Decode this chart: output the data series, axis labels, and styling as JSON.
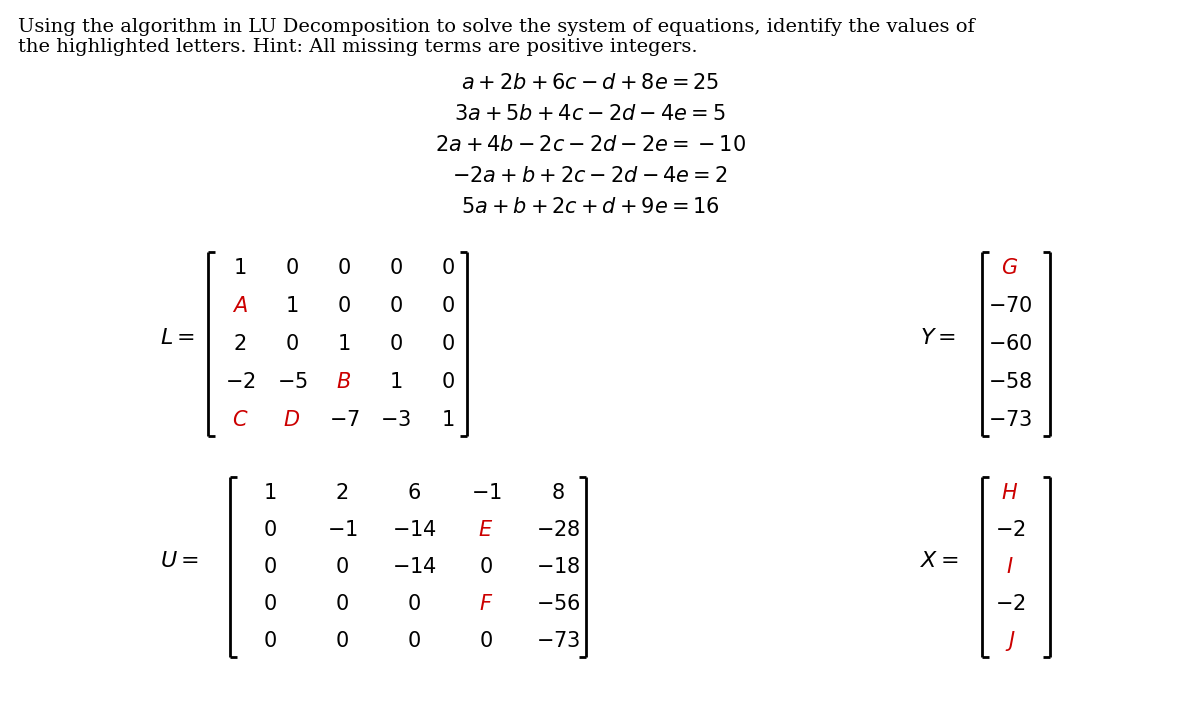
{
  "bg_color": "#ffffff",
  "text_color": "#000000",
  "highlight_color": "#cc0000",
  "title_line1": "Using the algorithm in LU Decomposition to solve the system of equations, identify the values of",
  "title_line2": "the highlighted letters. Hint: All missing terms are positive integers.",
  "L_matrix": [
    [
      [
        "1",
        "black"
      ],
      [
        "0",
        "black"
      ],
      [
        "0",
        "black"
      ],
      [
        "0",
        "black"
      ],
      [
        "0",
        "black"
      ]
    ],
    [
      [
        "A",
        "red"
      ],
      [
        "1",
        "black"
      ],
      [
        "0",
        "black"
      ],
      [
        "0",
        "black"
      ],
      [
        "0",
        "black"
      ]
    ],
    [
      [
        "2",
        "black"
      ],
      [
        "0",
        "black"
      ],
      [
        "1",
        "black"
      ],
      [
        "0",
        "black"
      ],
      [
        "0",
        "black"
      ]
    ],
    [
      [
        "-2",
        "black"
      ],
      [
        "-5",
        "black"
      ],
      [
        "B",
        "red"
      ],
      [
        "1",
        "black"
      ],
      [
        "0",
        "black"
      ]
    ],
    [
      [
        "C",
        "red"
      ],
      [
        "D",
        "red"
      ],
      [
        "-7",
        "black"
      ],
      [
        "-3",
        "black"
      ],
      [
        "1",
        "black"
      ]
    ]
  ],
  "Y_matrix": [
    [
      [
        "G",
        "red"
      ]
    ],
    [
      [
        "-70",
        "black"
      ]
    ],
    [
      [
        "-60",
        "black"
      ]
    ],
    [
      [
        "-58",
        "black"
      ]
    ],
    [
      [
        "-73",
        "black"
      ]
    ]
  ],
  "U_matrix": [
    [
      [
        "1",
        "black"
      ],
      [
        "2",
        "black"
      ],
      [
        "6",
        "black"
      ],
      [
        "-1",
        "black"
      ],
      [
        "8",
        "black"
      ]
    ],
    [
      [
        "0",
        "black"
      ],
      [
        "-1",
        "black"
      ],
      [
        "-14",
        "black"
      ],
      [
        "E",
        "red"
      ],
      [
        "-28",
        "black"
      ]
    ],
    [
      [
        "0",
        "black"
      ],
      [
        "0",
        "black"
      ],
      [
        "-14",
        "black"
      ],
      [
        "0",
        "black"
      ],
      [
        "-18",
        "black"
      ]
    ],
    [
      [
        "0",
        "black"
      ],
      [
        "0",
        "black"
      ],
      [
        "0",
        "black"
      ],
      [
        "F",
        "red"
      ],
      [
        "-56",
        "black"
      ]
    ],
    [
      [
        "0",
        "black"
      ],
      [
        "0",
        "black"
      ],
      [
        "0",
        "black"
      ],
      [
        "0",
        "black"
      ],
      [
        "-73",
        "black"
      ]
    ]
  ],
  "X_matrix": [
    [
      [
        "H",
        "red"
      ]
    ],
    [
      [
        "-2",
        "black"
      ]
    ],
    [
      [
        "I",
        "red"
      ]
    ],
    [
      [
        "-2",
        "black"
      ]
    ],
    [
      [
        "J",
        "red"
      ]
    ]
  ]
}
